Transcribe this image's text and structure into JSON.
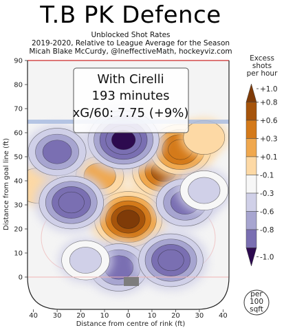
{
  "header": {
    "title": "T.B PK Defence",
    "subtitle_1": "Unblocked Shot Rates",
    "subtitle_2": "2019-2020, Relative to League Average for the Season",
    "subtitle_3": "Micah Blake McCurdy, @IneffectiveMath, hockeyviz.com"
  },
  "info_box": {
    "line_1": "With Cirelli",
    "line_2": "193 minutes",
    "line_3": "xG/60: 7.75 (+9%)"
  },
  "colorbar": {
    "title_1": "Excess",
    "title_2": "shots",
    "title_3": "per hour",
    "ticks": [
      "+1.0",
      "+0.8",
      "+0.6",
      "+0.3",
      "+0.1",
      "-0.1",
      "-0.3",
      "-0.6",
      "-0.8",
      "-1.0"
    ],
    "colors": [
      "#7f3b08",
      "#a6540b",
      "#d47a1a",
      "#f0a84e",
      "#fdd9a5",
      "#f7f7f7",
      "#d0d0e8",
      "#a7a5d0",
      "#7a6fb2",
      "#2d0a4f"
    ]
  },
  "unit_badge": {
    "line_1": "per",
    "line_2": "100",
    "line_3": "sqft"
  },
  "chart_data": {
    "type": "heatmap",
    "xlabel": "Distance from centre of rink (ft)",
    "ylabel": "Distance from goal line (ft)",
    "xlim": [
      -42.5,
      42.5
    ],
    "ylim": [
      -11,
      89
    ],
    "x_ticks": [
      40,
      30,
      20,
      10,
      0,
      10,
      20,
      30,
      40
    ],
    "y_ticks": [
      0,
      10,
      20,
      30,
      40,
      50,
      60,
      70,
      80,
      90
    ],
    "blue_line_y": 64,
    "value_range": [
      -1.0,
      1.0
    ],
    "regions": [
      {
        "name": "high-slot",
        "x": 0,
        "y": 24,
        "value": 0.9
      },
      {
        "name": "right-point-lane",
        "x": 15,
        "y": 44,
        "value": 0.75
      },
      {
        "name": "upper-right-wing",
        "x": 22,
        "y": 53,
        "value": 0.7
      },
      {
        "name": "left-faceoff",
        "x": -12,
        "y": 42,
        "value": 0.3
      },
      {
        "name": "left-point",
        "x": -38,
        "y": 38,
        "value": 0.15
      },
      {
        "name": "center-point",
        "x": -2,
        "y": 57,
        "value": -1.0
      },
      {
        "name": "left-wall-high",
        "x": -30,
        "y": 52,
        "value": -0.6
      },
      {
        "name": "left-circle",
        "x": -24,
        "y": 31,
        "value": -0.8
      },
      {
        "name": "right-circle",
        "x": 24,
        "y": 31,
        "value": -0.6
      },
      {
        "name": "crease-left",
        "x": -4,
        "y": 4,
        "value": -0.6
      },
      {
        "name": "right-low",
        "x": 18,
        "y": 7,
        "value": -0.8
      },
      {
        "name": "left-low",
        "x": -18,
        "y": 7,
        "value": -0.3
      },
      {
        "name": "right-wall",
        "x": 32,
        "y": 36,
        "value": -0.3
      },
      {
        "name": "right-blue-line",
        "x": 32,
        "y": 58,
        "value": 0.1
      }
    ]
  }
}
